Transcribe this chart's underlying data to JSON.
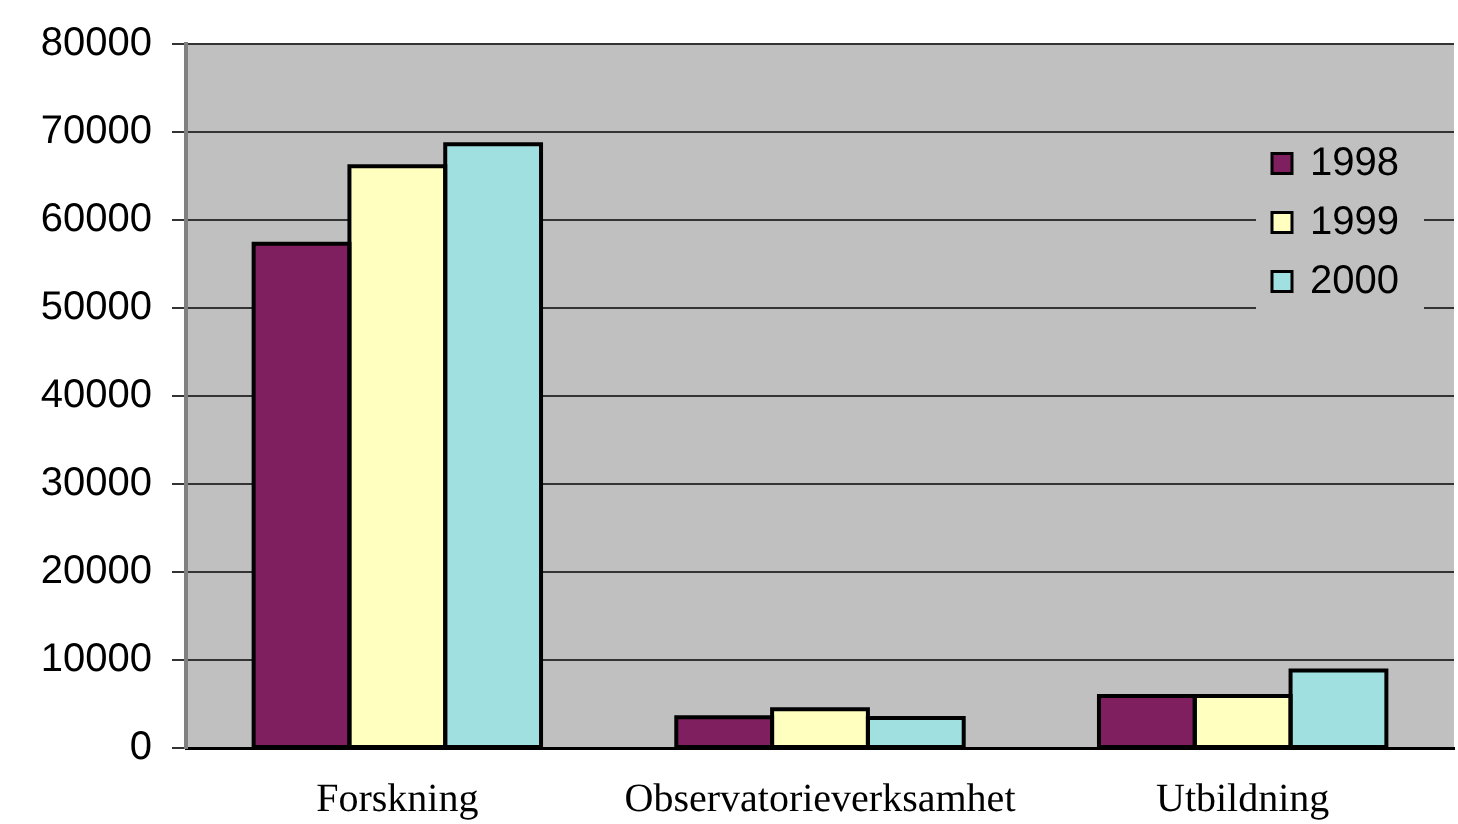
{
  "chart_data": {
    "type": "bar",
    "categories": [
      "Forskning",
      "Observatorieverksamhet",
      "Utbildning"
    ],
    "series": [
      {
        "name": "1998",
        "color": "#7f1f5f",
        "values": [
          57300,
          3500,
          5900
        ]
      },
      {
        "name": "1999",
        "color": "#ffffc0",
        "values": [
          66100,
          4400,
          5900
        ]
      },
      {
        "name": "2000",
        "color": "#a0e0e0",
        "values": [
          68600,
          3400,
          8800
        ]
      }
    ],
    "ylim": [
      0,
      80000
    ],
    "yticks": [
      0,
      10000,
      20000,
      30000,
      40000,
      50000,
      60000,
      70000,
      80000
    ],
    "grid": "y",
    "legend": "top right"
  }
}
